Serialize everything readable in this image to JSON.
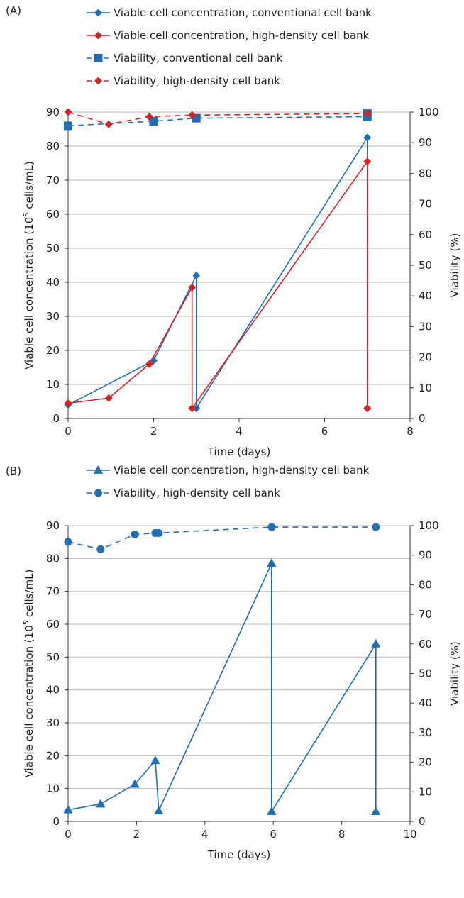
{
  "colors": {
    "blue": "#1f6fb5",
    "red": "#d2232a",
    "grid": "#bdbdbd",
    "axis": "#3a3a3a"
  },
  "chart_data": [
    {
      "type": "line",
      "panel_label": "(A)",
      "xlabel": "Time (days)",
      "ylabel": "Viable cell concentration (10",
      "ylabel_sup": "5",
      "ylabel_tail": " cells/mL)",
      "y2label": "Viability (%)",
      "xlim": [
        0,
        8
      ],
      "ylim": [
        0,
        90
      ],
      "y2lim": [
        0,
        100
      ],
      "xticks": [
        "0",
        "2",
        "4",
        "6",
        "8"
      ],
      "yticks": [
        "0",
        "10",
        "20",
        "30",
        "40",
        "50",
        "60",
        "70",
        "80",
        "90"
      ],
      "y2ticks": [
        "0",
        "10",
        "20",
        "30",
        "40",
        "50",
        "60",
        "70",
        "80",
        "90",
        "100"
      ],
      "grid": true,
      "legend_position": "top",
      "series": [
        {
          "name": "Viable cell concentration, conventional cell bank",
          "axis": "left",
          "color": "blue",
          "marker": "diamond",
          "dash": "solid",
          "x": [
            0,
            2,
            3,
            3,
            7,
            7
          ],
          "y": [
            4,
            17,
            42,
            3,
            82.5,
            3
          ]
        },
        {
          "name": "Viable cell concentration, high-density cell bank",
          "axis": "left",
          "color": "red",
          "marker": "diamond",
          "dash": "solid",
          "x": [
            0,
            0.95,
            1.9,
            2.9,
            2.9,
            7,
            7
          ],
          "y": [
            4.5,
            6,
            16,
            38.5,
            3,
            75.5,
            3
          ]
        },
        {
          "name": "Viability, conventional cell bank",
          "axis": "right",
          "color": "blue",
          "marker": "square",
          "dash": "dashed",
          "x": [
            0,
            2,
            3,
            7,
            7
          ],
          "y": [
            95.5,
            97,
            98,
            98.5,
            99.5
          ]
        },
        {
          "name": "Viability, high-density cell bank",
          "axis": "right",
          "color": "red",
          "marker": "diamond",
          "dash": "dashed",
          "x": [
            0,
            0.95,
            1.9,
            2.9,
            7
          ],
          "y": [
            100,
            96,
            98.5,
            99,
            99.5
          ]
        }
      ]
    },
    {
      "type": "line",
      "panel_label": "(B)",
      "xlabel": "Time (days)",
      "ylabel": "Viable cell concentration (10",
      "ylabel_sup": "5",
      "ylabel_tail": " cells/mL)",
      "y2label": "Viability (%)",
      "xlim": [
        0,
        10
      ],
      "ylim": [
        0,
        90
      ],
      "y2lim": [
        0,
        100
      ],
      "xticks": [
        "0",
        "2",
        "4",
        "6",
        "8",
        "10"
      ],
      "yticks": [
        "0",
        "10",
        "20",
        "30",
        "40",
        "50",
        "60",
        "70",
        "80",
        "90"
      ],
      "y2ticks": [
        "0",
        "10",
        "20",
        "30",
        "40",
        "50",
        "60",
        "70",
        "80",
        "90",
        "100"
      ],
      "grid": true,
      "legend_position": "top",
      "series": [
        {
          "name": "Viable cell concentration, high-density cell bank",
          "axis": "left",
          "color": "blue",
          "marker": "triangle",
          "dash": "solid",
          "x": [
            0,
            0.95,
            1.95,
            2.55,
            2.65,
            5.95,
            5.95,
            9,
            9
          ],
          "y": [
            3.5,
            5.3,
            11.3,
            18.5,
            3.2,
            78.5,
            3,
            54,
            3
          ]
        },
        {
          "name": "Viability, high-density cell bank",
          "axis": "right",
          "color": "blue",
          "marker": "circle",
          "dash": "dashed",
          "x": [
            0,
            0.95,
            1.95,
            2.55,
            2.65,
            5.95,
            9
          ],
          "y": [
            94.5,
            92,
            97,
            97.5,
            97.5,
            99.5,
            99.5
          ]
        }
      ]
    }
  ]
}
